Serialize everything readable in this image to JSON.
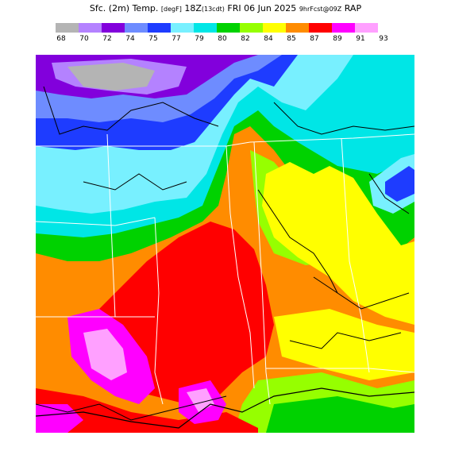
{
  "title": {
    "part1": "Sfc. (2m) Temp.",
    "units": "[degF]",
    "part2": "18Z",
    "local": "(13cdt)",
    "part3": "FRI 06 Jun 2025",
    "fcst": "9hrFcst@09Z",
    "model": "RAP"
  },
  "legend": {
    "colors": [
      "#b4b4b4",
      "#b482ff",
      "#8200dc",
      "#6e8cff",
      "#1e3cff",
      "#78f0ff",
      "#00e6e6",
      "#00d200",
      "#96ff00",
      "#ffff00",
      "#ff8c00",
      "#ff0000",
      "#ff00ff",
      "#ffa0ff"
    ],
    "labels": [
      "68",
      "70",
      "72",
      "74",
      "75",
      "77",
      "79",
      "80",
      "82",
      "84",
      "85",
      "87",
      "89",
      "91",
      "93"
    ]
  }
}
